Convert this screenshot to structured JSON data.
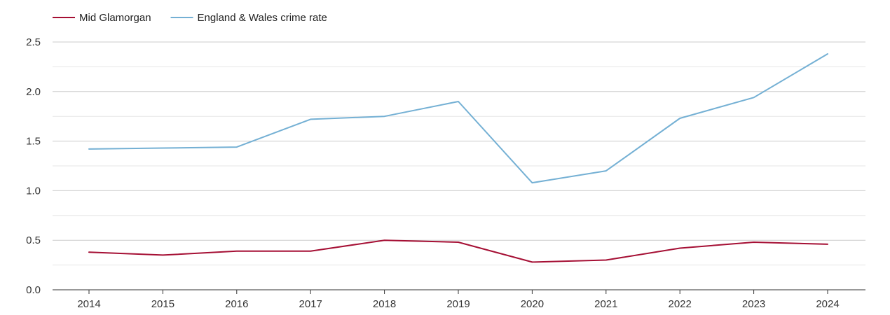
{
  "chart_data": {
    "type": "line",
    "x": [
      "2014",
      "2015",
      "2016",
      "2017",
      "2018",
      "2019",
      "2020",
      "2021",
      "2022",
      "2023",
      "2024"
    ],
    "series": [
      {
        "name": "Mid Glamorgan",
        "color": "#a50f34",
        "values": [
          0.38,
          0.35,
          0.39,
          0.39,
          0.5,
          0.48,
          0.28,
          0.3,
          0.42,
          0.48,
          0.46
        ]
      },
      {
        "name": "England & Wales crime rate",
        "color": "#74b0d4",
        "values": [
          1.42,
          1.43,
          1.44,
          1.72,
          1.75,
          1.9,
          1.08,
          1.2,
          1.73,
          1.94,
          2.38
        ]
      }
    ],
    "y_ticks": [
      "0.0",
      "0.5",
      "1.0",
      "1.5",
      "2.0",
      "2.5"
    ],
    "ylim": [
      0,
      2.5
    ],
    "grid": true,
    "legend_position": "top-left"
  }
}
